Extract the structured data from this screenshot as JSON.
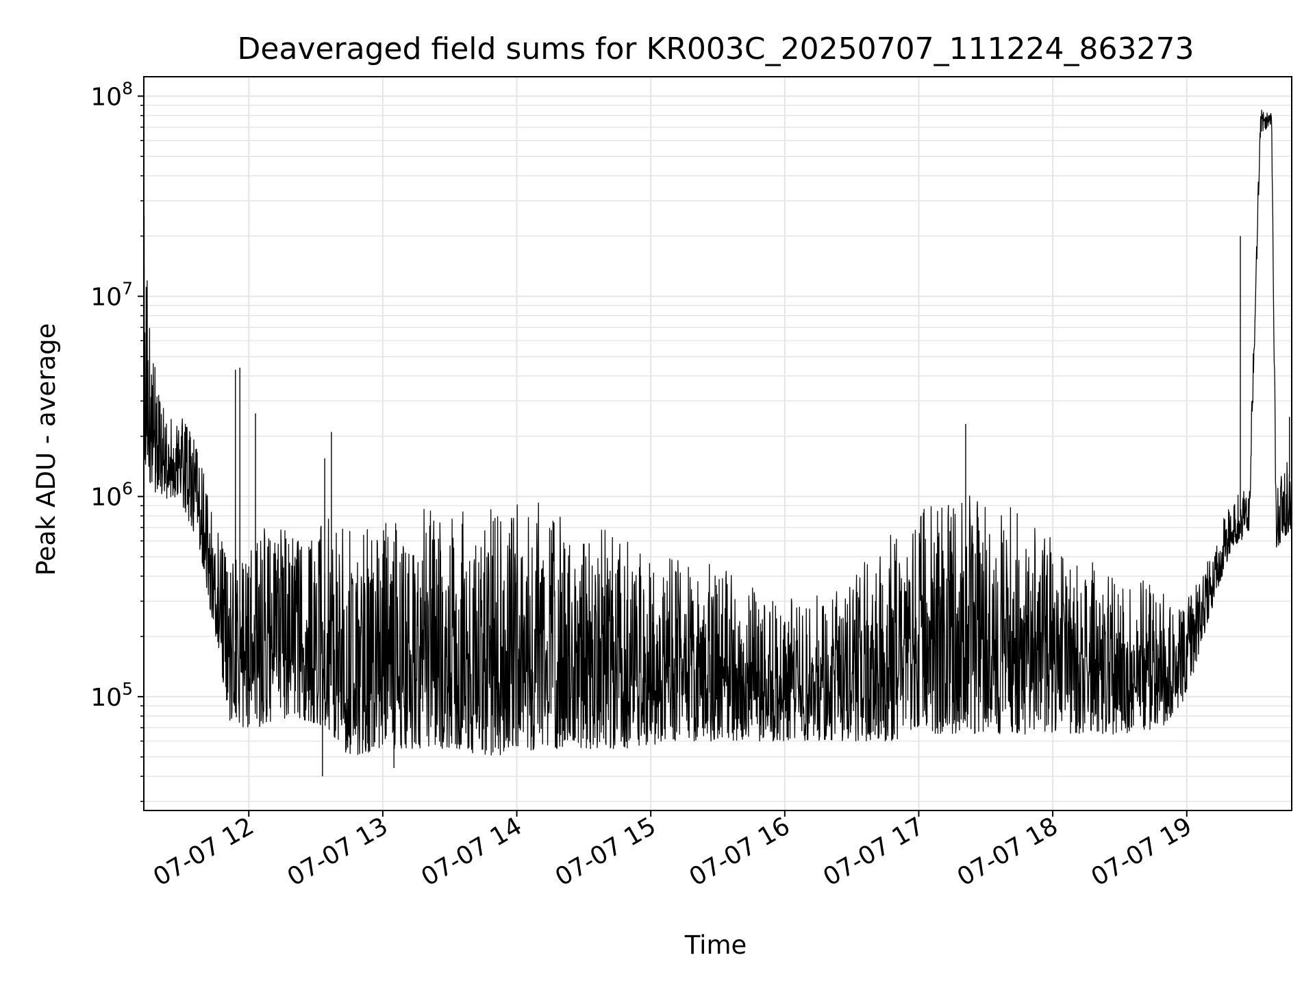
{
  "chart_data": {
    "type": "line",
    "title": "Deaveraged field sums for KR003C_20250707_111224_863273",
    "xlabel": "Time",
    "ylabel": "Peak ADU - average",
    "yscale": "log",
    "grid": true,
    "legend": "none",
    "line_color": "#000000",
    "grid_color": "#e5e5e5",
    "xlim": [
      "2025-07-07 11:13",
      "2025-07-07 19:47"
    ],
    "ylim": [
      27000,
      125000000
    ],
    "x_ticks": [
      {
        "time": "2025-07-07 12:00",
        "label": "07-07 12"
      },
      {
        "time": "2025-07-07 13:00",
        "label": "07-07 13"
      },
      {
        "time": "2025-07-07 14:00",
        "label": "07-07 14"
      },
      {
        "time": "2025-07-07 15:00",
        "label": "07-07 15"
      },
      {
        "time": "2025-07-07 16:00",
        "label": "07-07 16"
      },
      {
        "time": "2025-07-07 17:00",
        "label": "07-07 17"
      },
      {
        "time": "2025-07-07 18:00",
        "label": "07-07 18"
      },
      {
        "time": "2025-07-07 19:00",
        "label": "07-07 19"
      }
    ],
    "y_ticks": [
      {
        "value": 100000,
        "base": "10",
        "exponent": "5"
      },
      {
        "value": 1000000,
        "base": "10",
        "exponent": "6"
      },
      {
        "value": 10000000,
        "base": "10",
        "exponent": "7"
      },
      {
        "value": 100000000,
        "base": "10",
        "exponent": "8"
      }
    ],
    "series": [
      {
        "values_description_free": true,
        "envelope": [
          {
            "time": "2025-07-07 11:13",
            "low": 1200000,
            "high": 27000000
          },
          {
            "time": "2025-07-07 11:20",
            "low": 1000000,
            "high": 3000000
          },
          {
            "time": "2025-07-07 11:30",
            "low": 900000,
            "high": 2500000
          },
          {
            "time": "2025-07-07 11:37",
            "low": 600000,
            "high": 1900000
          },
          {
            "time": "2025-07-07 11:45",
            "low": 200000,
            "high": 700000
          },
          {
            "time": "2025-07-07 11:52",
            "low": 70000,
            "high": 500000
          },
          {
            "time": "2025-07-07 12:05",
            "low": 70000,
            "high": 700000
          },
          {
            "time": "2025-07-07 12:20",
            "low": 80000,
            "high": 700000
          },
          {
            "time": "2025-07-07 12:35",
            "low": 70000,
            "high": 800000
          },
          {
            "time": "2025-07-07 12:45",
            "low": 50000,
            "high": 700000
          },
          {
            "time": "2025-07-07 13:00",
            "low": 55000,
            "high": 800000
          },
          {
            "time": "2025-07-07 13:15",
            "low": 55000,
            "high": 850000
          },
          {
            "time": "2025-07-07 13:30",
            "low": 55000,
            "high": 950000
          },
          {
            "time": "2025-07-07 13:50",
            "low": 50000,
            "high": 950000
          },
          {
            "time": "2025-07-07 14:10",
            "low": 55000,
            "high": 950000
          },
          {
            "time": "2025-07-07 14:30",
            "low": 55000,
            "high": 900000
          },
          {
            "time": "2025-07-07 14:50",
            "low": 55000,
            "high": 600000
          },
          {
            "time": "2025-07-07 15:10",
            "low": 60000,
            "high": 500000
          },
          {
            "time": "2025-07-07 15:30",
            "low": 60000,
            "high": 450000
          },
          {
            "time": "2025-07-07 15:50",
            "low": 60000,
            "high": 350000
          },
          {
            "time": "2025-07-07 16:10",
            "low": 60000,
            "high": 300000
          },
          {
            "time": "2025-07-07 16:30",
            "low": 60000,
            "high": 400000
          },
          {
            "time": "2025-07-07 16:50",
            "low": 60000,
            "high": 800000
          },
          {
            "time": "2025-07-07 17:10",
            "low": 65000,
            "high": 1000000
          },
          {
            "time": "2025-07-07 17:30",
            "low": 65000,
            "high": 1100000
          },
          {
            "time": "2025-07-07 17:50",
            "low": 65000,
            "high": 800000
          },
          {
            "time": "2025-07-07 18:10",
            "low": 65000,
            "high": 500000
          },
          {
            "time": "2025-07-07 18:30",
            "low": 65000,
            "high": 450000
          },
          {
            "time": "2025-07-07 18:50",
            "low": 70000,
            "high": 350000
          },
          {
            "time": "2025-07-07 19:00",
            "low": 100000,
            "high": 300000
          },
          {
            "time": "2025-07-07 19:10",
            "low": 250000,
            "high": 500000
          },
          {
            "time": "2025-07-07 19:20",
            "low": 550000,
            "high": 1000000
          },
          {
            "time": "2025-07-07 19:28",
            "low": 650000,
            "high": 1100000
          },
          {
            "time": "2025-07-07 19:33",
            "low": 65000000,
            "high": 88000000
          },
          {
            "time": "2025-07-07 19:38",
            "low": 72000000,
            "high": 82000000
          },
          {
            "time": "2025-07-07 19:40",
            "low": 550000,
            "high": 1100000
          },
          {
            "time": "2025-07-07 19:47",
            "low": 700000,
            "high": 2500000
          }
        ],
        "spikes": [
          {
            "time": "2025-07-07 11:13",
            "value": 27000000
          },
          {
            "time": "2025-07-07 11:54",
            "value": 4300000
          },
          {
            "time": "2025-07-07 11:56",
            "value": 4400000
          },
          {
            "time": "2025-07-07 12:03",
            "value": 2600000
          },
          {
            "time": "2025-07-07 12:34",
            "value": 1550000
          },
          {
            "time": "2025-07-07 12:37",
            "value": 2100000
          },
          {
            "time": "2025-07-07 12:33",
            "value": 40000
          },
          {
            "time": "2025-07-07 13:05",
            "value": 44000
          },
          {
            "time": "2025-07-07 17:21",
            "value": 2300000
          },
          {
            "time": "2025-07-07 19:24",
            "value": 20000000
          },
          {
            "time": "2025-07-07 19:46",
            "value": 2500000
          }
        ]
      }
    ]
  }
}
